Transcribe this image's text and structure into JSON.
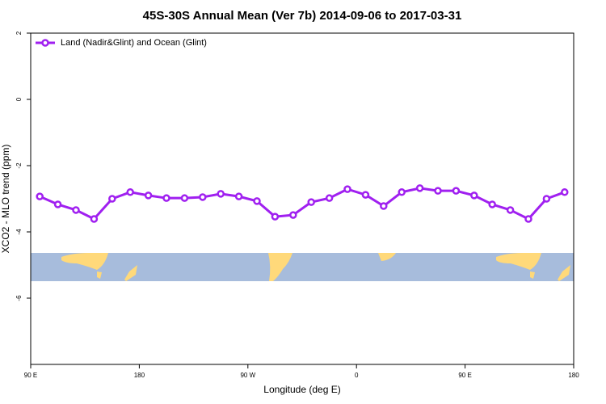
{
  "chart_data": {
    "type": "line",
    "title": "45S-30S Annual Mean (Ver 7b)   2014-09-06 to 2017-03-31",
    "x_label": "Longitude (deg E)",
    "y_label": "XCO2 - MLO trend (ppm)",
    "x": [
      97.5,
      112.5,
      127.5,
      142.5,
      157.5,
      172.5,
      187.5,
      202.5,
      217.5,
      232.5,
      247.5,
      262.5,
      277.5,
      292.5,
      307.5,
      322.5,
      337.5,
      352.5,
      367.5,
      382.5,
      397.5,
      412.5,
      427.5,
      442.5,
      457.5,
      472.5,
      487.5,
      502.5,
      517.5,
      532.5
    ],
    "series": [
      {
        "name": "Land (Nadir&Glint) and Ocean (Glint)",
        "color": "#a020f0",
        "values": [
          -2.93,
          -3.17,
          -3.34,
          -3.61,
          -3.0,
          -2.8,
          -2.9,
          -2.98,
          -2.98,
          -2.95,
          -2.85,
          -2.93,
          -3.07,
          -3.54,
          -3.49,
          -3.1,
          -2.98,
          -2.71,
          -2.88,
          -3.22,
          -2.8,
          -2.68,
          -2.76,
          -2.76,
          -2.9,
          -3.17,
          -3.34,
          -3.61,
          -3.0,
          -2.8
        ]
      }
    ],
    "xlim": [
      90,
      540
    ],
    "xticks": [
      {
        "value": 90,
        "label": "90 E"
      },
      {
        "value": 180,
        "label": "180"
      },
      {
        "value": 270,
        "label": "90 W"
      },
      {
        "value": 360,
        "label": "0"
      },
      {
        "value": 450,
        "label": "90 E"
      },
      {
        "value": 540,
        "label": "180"
      }
    ],
    "ylim": [
      -8,
      2
    ],
    "yticks": [
      2,
      0,
      -2,
      -4,
      -6
    ],
    "legend": "top-left"
  }
}
